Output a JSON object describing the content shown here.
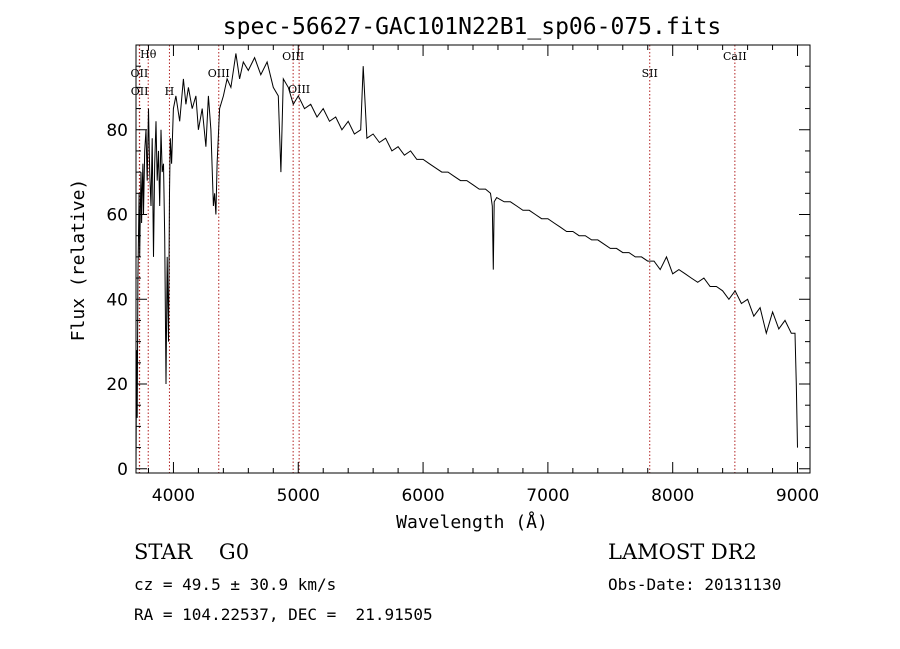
{
  "chart_data": {
    "type": "line",
    "title": "spec-56627-GAC101N22B1_sp06-075.fits",
    "xlabel": "Wavelength (Å)",
    "ylabel": "Flux (relative)",
    "xlim": [
      3700,
      9100
    ],
    "ylim": [
      -1,
      100
    ],
    "x_ticks": [
      4000,
      5000,
      6000,
      7000,
      8000,
      9000
    ],
    "y_ticks": [
      0,
      20,
      40,
      60,
      80
    ],
    "grid": false,
    "series": [
      {
        "x": [
          3700,
          3705,
          3710,
          3715,
          3720,
          3725,
          3730,
          3735,
          3740,
          3745,
          3750,
          3755,
          3760,
          3770,
          3780,
          3790,
          3800,
          3810,
          3820,
          3830,
          3840,
          3850,
          3860,
          3870,
          3880,
          3890,
          3900,
          3910,
          3920,
          3930,
          3940,
          3950,
          3960,
          3968,
          3975,
          3985,
          4000,
          4020,
          4050,
          4080,
          4100,
          4120,
          4150,
          4180,
          4200,
          4230,
          4260,
          4280,
          4300,
          4320,
          4330,
          4340,
          4350,
          4370,
          4400,
          4430,
          4460,
          4500,
          4530,
          4560,
          4600,
          4650,
          4700,
          4750,
          4800,
          4840,
          4861,
          4880,
          4920,
          4960,
          5000,
          5050,
          5100,
          5150,
          5200,
          5250,
          5300,
          5350,
          5400,
          5450,
          5500,
          5520,
          5550,
          5600,
          5650,
          5700,
          5750,
          5800,
          5850,
          5900,
          5950,
          6000,
          6050,
          6100,
          6150,
          6200,
          6250,
          6300,
          6350,
          6400,
          6450,
          6500,
          6540,
          6555,
          6563,
          6570,
          6590,
          6650,
          6700,
          6750,
          6800,
          6850,
          6900,
          6950,
          7000,
          7050,
          7100,
          7150,
          7200,
          7250,
          7300,
          7350,
          7400,
          7450,
          7500,
          7550,
          7600,
          7650,
          7700,
          7750,
          7800,
          7850,
          7900,
          7950,
          8000,
          8050,
          8100,
          8150,
          8200,
          8250,
          8300,
          8350,
          8400,
          8450,
          8500,
          8550,
          8600,
          8650,
          8700,
          8750,
          8800,
          8850,
          8900,
          8950,
          8980,
          8990,
          9000
        ],
        "y": [
          0,
          28,
          12,
          45,
          55,
          65,
          50,
          62,
          70,
          58,
          66,
          72,
          60,
          75,
          80,
          68,
          85,
          70,
          62,
          78,
          50,
          72,
          82,
          68,
          75,
          62,
          80,
          70,
          72,
          55,
          20,
          50,
          30,
          65,
          78,
          72,
          85,
          88,
          82,
          92,
          86,
          90,
          85,
          88,
          80,
          85,
          76,
          88,
          80,
          62,
          65,
          60,
          72,
          85,
          88,
          92,
          90,
          98,
          92,
          96,
          94,
          97,
          93,
          96,
          90,
          88,
          70,
          92,
          90,
          86,
          88,
          85,
          86,
          83,
          85,
          82,
          83,
          80,
          82,
          79,
          80,
          95,
          78,
          79,
          77,
          78,
          75,
          76,
          74,
          75,
          73,
          73,
          72,
          71,
          70,
          70,
          69,
          68,
          68,
          67,
          66,
          66,
          65,
          62,
          47,
          63,
          64,
          63,
          63,
          62,
          61,
          61,
          60,
          59,
          59,
          58,
          57,
          56,
          56,
          55,
          55,
          54,
          54,
          53,
          52,
          52,
          51,
          51,
          50,
          50,
          49,
          49,
          47,
          50,
          46,
          47,
          46,
          45,
          44,
          45,
          43,
          43,
          42,
          40,
          42,
          39,
          40,
          36,
          38,
          32,
          37,
          33,
          35,
          32,
          32,
          20,
          5
        ]
      }
    ],
    "lines": [
      {
        "label": "Hθ",
        "x": 3798
      },
      {
        "label": "OII",
        "x": 3727
      },
      {
        "label": "OII",
        "x": 3729
      },
      {
        "label": "H",
        "x": 3968
      },
      {
        "label": "OIII",
        "x": 4363
      },
      {
        "label": "OIII",
        "x": 4959
      },
      {
        "label": "OIII",
        "x": 5007
      },
      {
        "label": "SII",
        "x": 7816
      },
      {
        "label": "CaII",
        "x": 8498
      }
    ],
    "line_color": "#b22222",
    "trace_color": "#000000"
  },
  "footer": {
    "class": "STAR    G0",
    "survey": "LAMOST DR2",
    "cz": "cz = 49.5 ± 30.9 km/s",
    "obs_date": "Obs-Date: 20131130",
    "radec": "RA = 104.22537, DEC =  21.91505"
  }
}
